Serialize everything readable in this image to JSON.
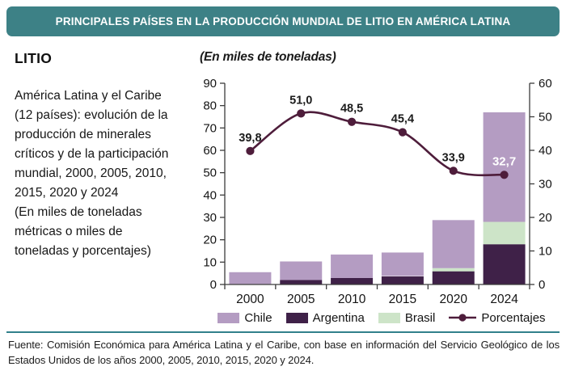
{
  "header": {
    "title": "PRINCIPALES PAÍSES EN LA PRODUCCIÓN MUNDIAL DE LITIO EN AMÉRICA LATINA"
  },
  "sidebar": {
    "heading": "LITIO",
    "description": "América Latina y el Caribe (12 países): evolución de la producción de minerales críticos y de la participación mundial, 2000, 2005, 2010, 2015, 2020 y 2024",
    "unit_note": "(En miles de toneladas métricas o miles de toneladas y porcentajes)"
  },
  "chart": {
    "subtitle": "(En miles de toneladas)"
  },
  "chart_data": {
    "type": "bar",
    "subtype": "stacked-bars-with-line",
    "title": "Principales países en la producción mundial de litio en América Latina",
    "categories": [
      "2000",
      "2005",
      "2010",
      "2015",
      "2020",
      "2024"
    ],
    "bar_series": [
      {
        "name": "Argentina",
        "color": "#3f2148",
        "values": [
          0.2,
          2.0,
          2.9,
          3.6,
          5.9,
          18.0
        ]
      },
      {
        "name": "Brasil",
        "color": "#cde4c8",
        "values": [
          0,
          0,
          0,
          0.2,
          1.4,
          10.0
        ]
      },
      {
        "name": "Chile",
        "color": "#b49cc2",
        "values": [
          5.3,
          8.3,
          10.5,
          10.5,
          21.5,
          49.0
        ]
      }
    ],
    "line_series": {
      "name": "Porcentajes",
      "color": "#4e1d3b",
      "axis": "right",
      "values": [
        39.8,
        51.0,
        48.5,
        45.4,
        33.9,
        32.7
      ],
      "labels": [
        {
          "text": "39,8",
          "on_bar": false
        },
        {
          "text": "51,0",
          "on_bar": false
        },
        {
          "text": "48,5",
          "on_bar": false
        },
        {
          "text": "45,4",
          "on_bar": false
        },
        {
          "text": "33,9",
          "on_bar": false
        },
        {
          "text": "32,7",
          "on_bar": true
        }
      ]
    },
    "left_axis": {
      "min": 0,
      "max": 90,
      "step": 10,
      "ticks": [
        "0",
        "10",
        "20",
        "30",
        "40",
        "50",
        "60",
        "70",
        "80",
        "90"
      ]
    },
    "right_axis": {
      "min": 0,
      "max": 60,
      "step": 10,
      "ticks": [
        "0",
        "10",
        "20",
        "30",
        "40",
        "50",
        "60"
      ]
    },
    "legend": [
      "Chile",
      "Argentina",
      "Brasil",
      "Porcentajes"
    ],
    "legend_position": "bottom",
    "grid": false
  },
  "footer": {
    "source": "Fuente: Comisión Económica para América Latina y el Caribe, con base en información del Servicio Geológico de los Estados Unidos de los años 2000, 2005, 2010, 2015, 2020 y 2024."
  }
}
